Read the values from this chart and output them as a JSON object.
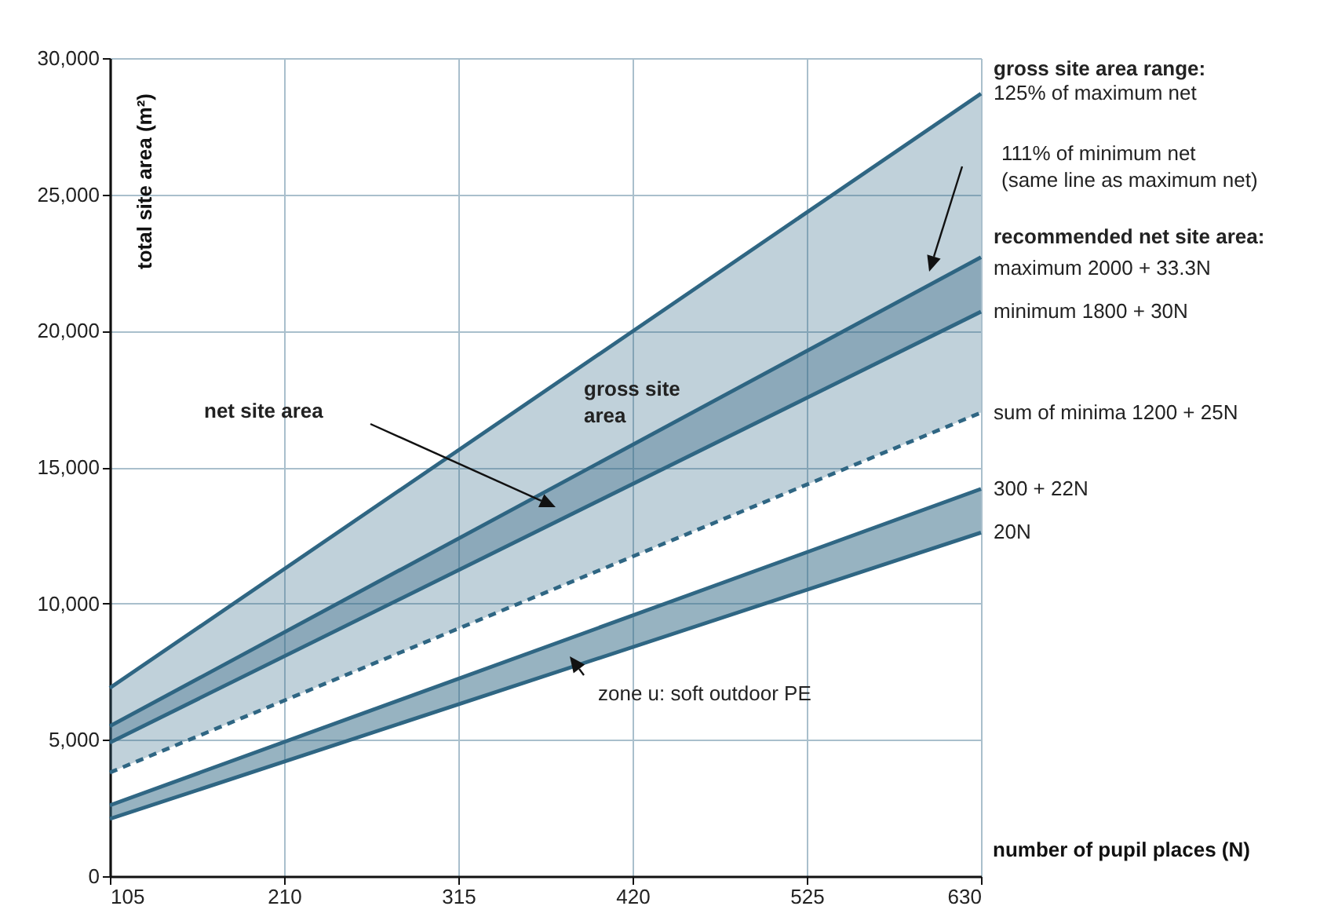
{
  "chart_data": {
    "type": "line",
    "xlabel": "number of pupil places (N)",
    "ylabel": "total site area (m²)",
    "x": [
      105,
      630
    ],
    "xlim": [
      105,
      630
    ],
    "xticks": [
      105,
      210,
      315,
      420,
      525,
      630
    ],
    "ylim": [
      0,
      30000
    ],
    "yticks": [
      0,
      {
        "value": 5000,
        "label": "5,000"
      },
      {
        "value": 10000,
        "label": "10,000"
      },
      {
        "value": 15000,
        "label": "15,000"
      },
      {
        "value": 20000,
        "label": "20,000"
      },
      {
        "value": 25000,
        "label": "25,000"
      },
      {
        "value": 30000,
        "label": "30,000"
      }
    ],
    "grid": true,
    "legend": false,
    "marker": "none",
    "series": [
      {
        "name": "125% of maximum net",
        "color": "#2f6683",
        "values": [
          6900,
          28700
        ],
        "lower": [
          3800,
          17000
        ],
        "upper": [
          6900,
          28700
        ]
      },
      {
        "name": "maximum 2000 + 33.3N",
        "color": "#2e6582",
        "values": [
          5500,
          22700
        ],
        "lower": [
          4900,
          20700
        ],
        "upper": [
          5500,
          22700
        ]
      },
      {
        "name": "minimum 1800 + 30N",
        "color": "#2f6683",
        "values": [
          4900,
          20700
        ]
      },
      {
        "name": "sum of minima 1200 + 25N",
        "color": "#2f6683",
        "values": [
          3800,
          17000
        ],
        "line_style": "dashed"
      },
      {
        "name": "300 + 22N",
        "color": "#306784",
        "values": [
          2600,
          14200
        ],
        "lower": [
          2100,
          12600
        ],
        "upper": [
          2600,
          14200
        ]
      },
      {
        "name": "20N",
        "color": "#2f6683",
        "values": [
          2100,
          12600
        ]
      }
    ],
    "annotations": [
      "gross site area range:",
      "111% of minimum net\n(same line as maximum net)",
      "recommended net site area:",
      "gross site\narea",
      "net site area",
      "zone u: soft outdoor PE"
    ]
  }
}
